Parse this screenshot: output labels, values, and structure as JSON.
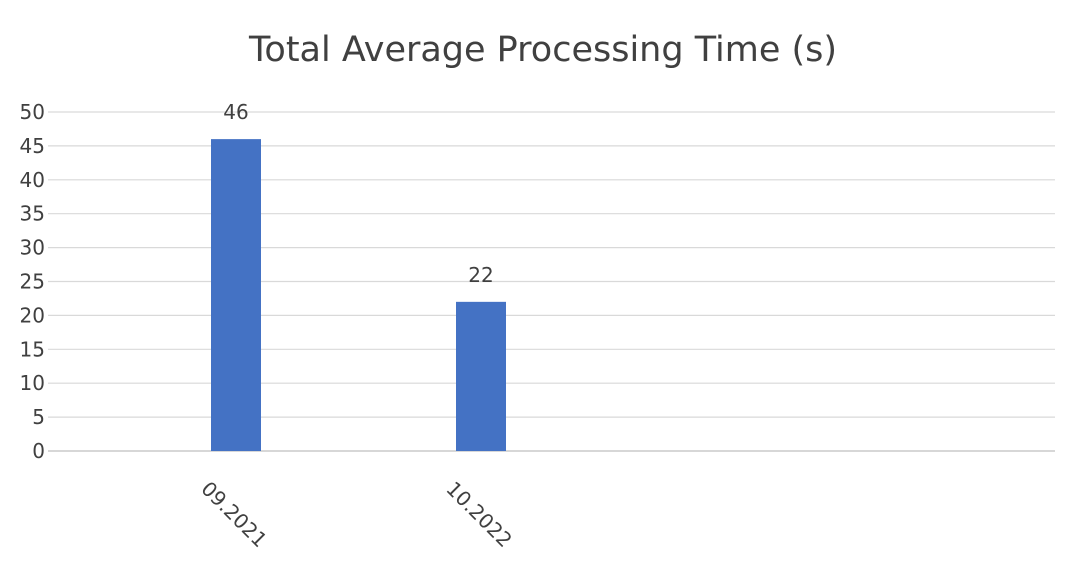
{
  "chart_data": {
    "type": "bar",
    "title": "Total Average Processing Time (s)",
    "categories": [
      "09.2021",
      "10.2022"
    ],
    "values": [
      46,
      22
    ],
    "ylim": [
      0,
      50
    ],
    "yticks": [
      "0",
      "5",
      "10",
      "15",
      "20",
      "25",
      "30",
      "35",
      "40",
      "45",
      "50"
    ],
    "data_labels": [
      "46",
      "22"
    ],
    "grid": true,
    "legend": "none",
    "colors": {
      "bar": "#4472C4",
      "grid": "#D9D9D9",
      "text": "#404040"
    }
  }
}
